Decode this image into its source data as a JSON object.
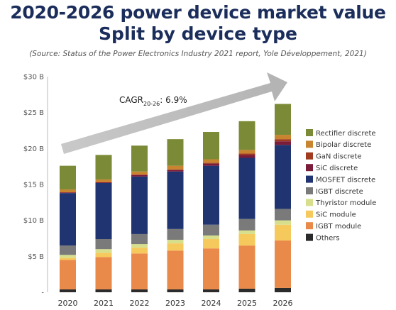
{
  "title_line1": "2020-2026 power device market value",
  "title_line2": "Split by device type",
  "source": "(Source: Status of the Power Electronics Industry 2021 report, Yole Développement, 2021)",
  "annotation": {
    "prefix": "CAGR",
    "subscript": "20-26",
    "value": ": 6.9%"
  },
  "chart_data": {
    "type": "bar",
    "stacked": true,
    "categories": [
      "2020",
      "2021",
      "2022",
      "2023",
      "2024",
      "2025",
      "2026"
    ],
    "ylim": [
      0,
      30
    ],
    "yticks": [
      {
        "value": 0,
        "label": "-"
      },
      {
        "value": 5,
        "label": "$5 B"
      },
      {
        "value": 10,
        "label": "$10 B"
      },
      {
        "value": 15,
        "label": "$15 B"
      },
      {
        "value": 20,
        "label": "$20 B"
      },
      {
        "value": 25,
        "label": "$25 B"
      },
      {
        "value": 30,
        "label": "$30 B"
      }
    ],
    "grid": false,
    "legend_position": "right",
    "series": [
      {
        "name": "Others",
        "color": "#2b2b2b",
        "values": [
          0.4,
          0.4,
          0.4,
          0.4,
          0.4,
          0.5,
          0.6
        ]
      },
      {
        "name": "IGBT module",
        "color": "#e98a4a",
        "values": [
          4.1,
          4.5,
          5.0,
          5.4,
          5.7,
          6.0,
          6.6
        ]
      },
      {
        "name": "SiC module",
        "color": "#f6c95c",
        "values": [
          0.3,
          0.6,
          0.8,
          1.0,
          1.3,
          1.6,
          2.2
        ]
      },
      {
        "name": "Thyristor module",
        "color": "#d7df8c",
        "values": [
          0.4,
          0.5,
          0.5,
          0.5,
          0.5,
          0.5,
          0.6
        ]
      },
      {
        "name": "IGBT discrete",
        "color": "#7a7a7a",
        "values": [
          1.3,
          1.4,
          1.4,
          1.5,
          1.5,
          1.6,
          1.6
        ]
      },
      {
        "name": "MOSFET discrete",
        "color": "#1f3470",
        "values": [
          7.3,
          7.8,
          8.0,
          8.0,
          8.2,
          8.5,
          8.9
        ]
      },
      {
        "name": "SiC discrete",
        "color": "#7a1c3a",
        "values": [
          0.1,
          0.1,
          0.2,
          0.2,
          0.3,
          0.4,
          0.5
        ]
      },
      {
        "name": "GaN discrete",
        "color": "#a13b1f",
        "values": [
          0.0,
          0.0,
          0.1,
          0.1,
          0.1,
          0.2,
          0.3
        ]
      },
      {
        "name": "Bipolar discrete",
        "color": "#c8842f",
        "values": [
          0.4,
          0.4,
          0.4,
          0.5,
          0.5,
          0.5,
          0.6
        ]
      },
      {
        "name": "Rectifier discrete",
        "color": "#7b8a37",
        "values": [
          3.3,
          3.4,
          3.6,
          3.7,
          3.8,
          4.0,
          4.3
        ]
      }
    ]
  }
}
